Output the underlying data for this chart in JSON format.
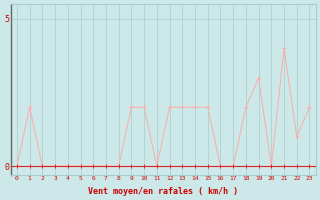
{
  "x": [
    0,
    1,
    2,
    3,
    4,
    5,
    6,
    7,
    8,
    9,
    10,
    11,
    12,
    13,
    14,
    15,
    16,
    17,
    18,
    19,
    20,
    21,
    22,
    23
  ],
  "y_mean": [
    0,
    0,
    0,
    0,
    0,
    0,
    0,
    0,
    0,
    0,
    0,
    0,
    0,
    0,
    0,
    0,
    0,
    0,
    0,
    0,
    0,
    0,
    0,
    0
  ],
  "y_gust": [
    0,
    2,
    0,
    0,
    0,
    0,
    0,
    0,
    0,
    2,
    2,
    0,
    2,
    2,
    2,
    2,
    0,
    0,
    2,
    3,
    0,
    4,
    1,
    2
  ],
  "bg_color": "#cce8e8",
  "grid_color": "#aacccc",
  "line_color_mean": "#dd2222",
  "line_color_gust": "#ffaaaa",
  "xlabel": "Vent moyen/en rafales ( km/h )",
  "yticks": [
    0,
    5
  ],
  "ylim": [
    -0.3,
    5.5
  ],
  "xlim": [
    -0.5,
    23.5
  ],
  "tick_color": "#cc0000",
  "xlabel_color": "#cc0000",
  "spine_left_color": "#666666"
}
